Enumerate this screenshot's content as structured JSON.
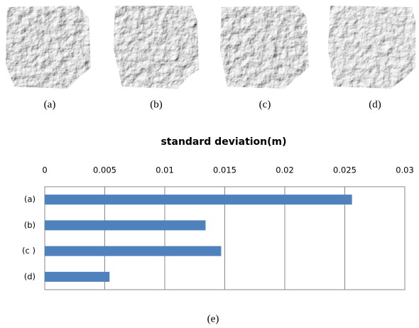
{
  "figure": {
    "panel_labels": [
      "(a)",
      "(b)",
      "(c)",
      "(d)"
    ],
    "caption": "(e)"
  },
  "chart_data": {
    "type": "bar",
    "orientation": "horizontal",
    "title": "standard deviation(m)",
    "categories": [
      "(a)",
      "(b)",
      "(c )",
      "(d)"
    ],
    "values": [
      0.0256,
      0.0134,
      0.0147,
      0.0054
    ],
    "color": "#4f81bd",
    "xlim": [
      0,
      0.03
    ],
    "xticks": [
      0,
      0.005,
      0.01,
      0.015,
      0.02,
      0.025,
      0.03
    ],
    "grid": true
  }
}
